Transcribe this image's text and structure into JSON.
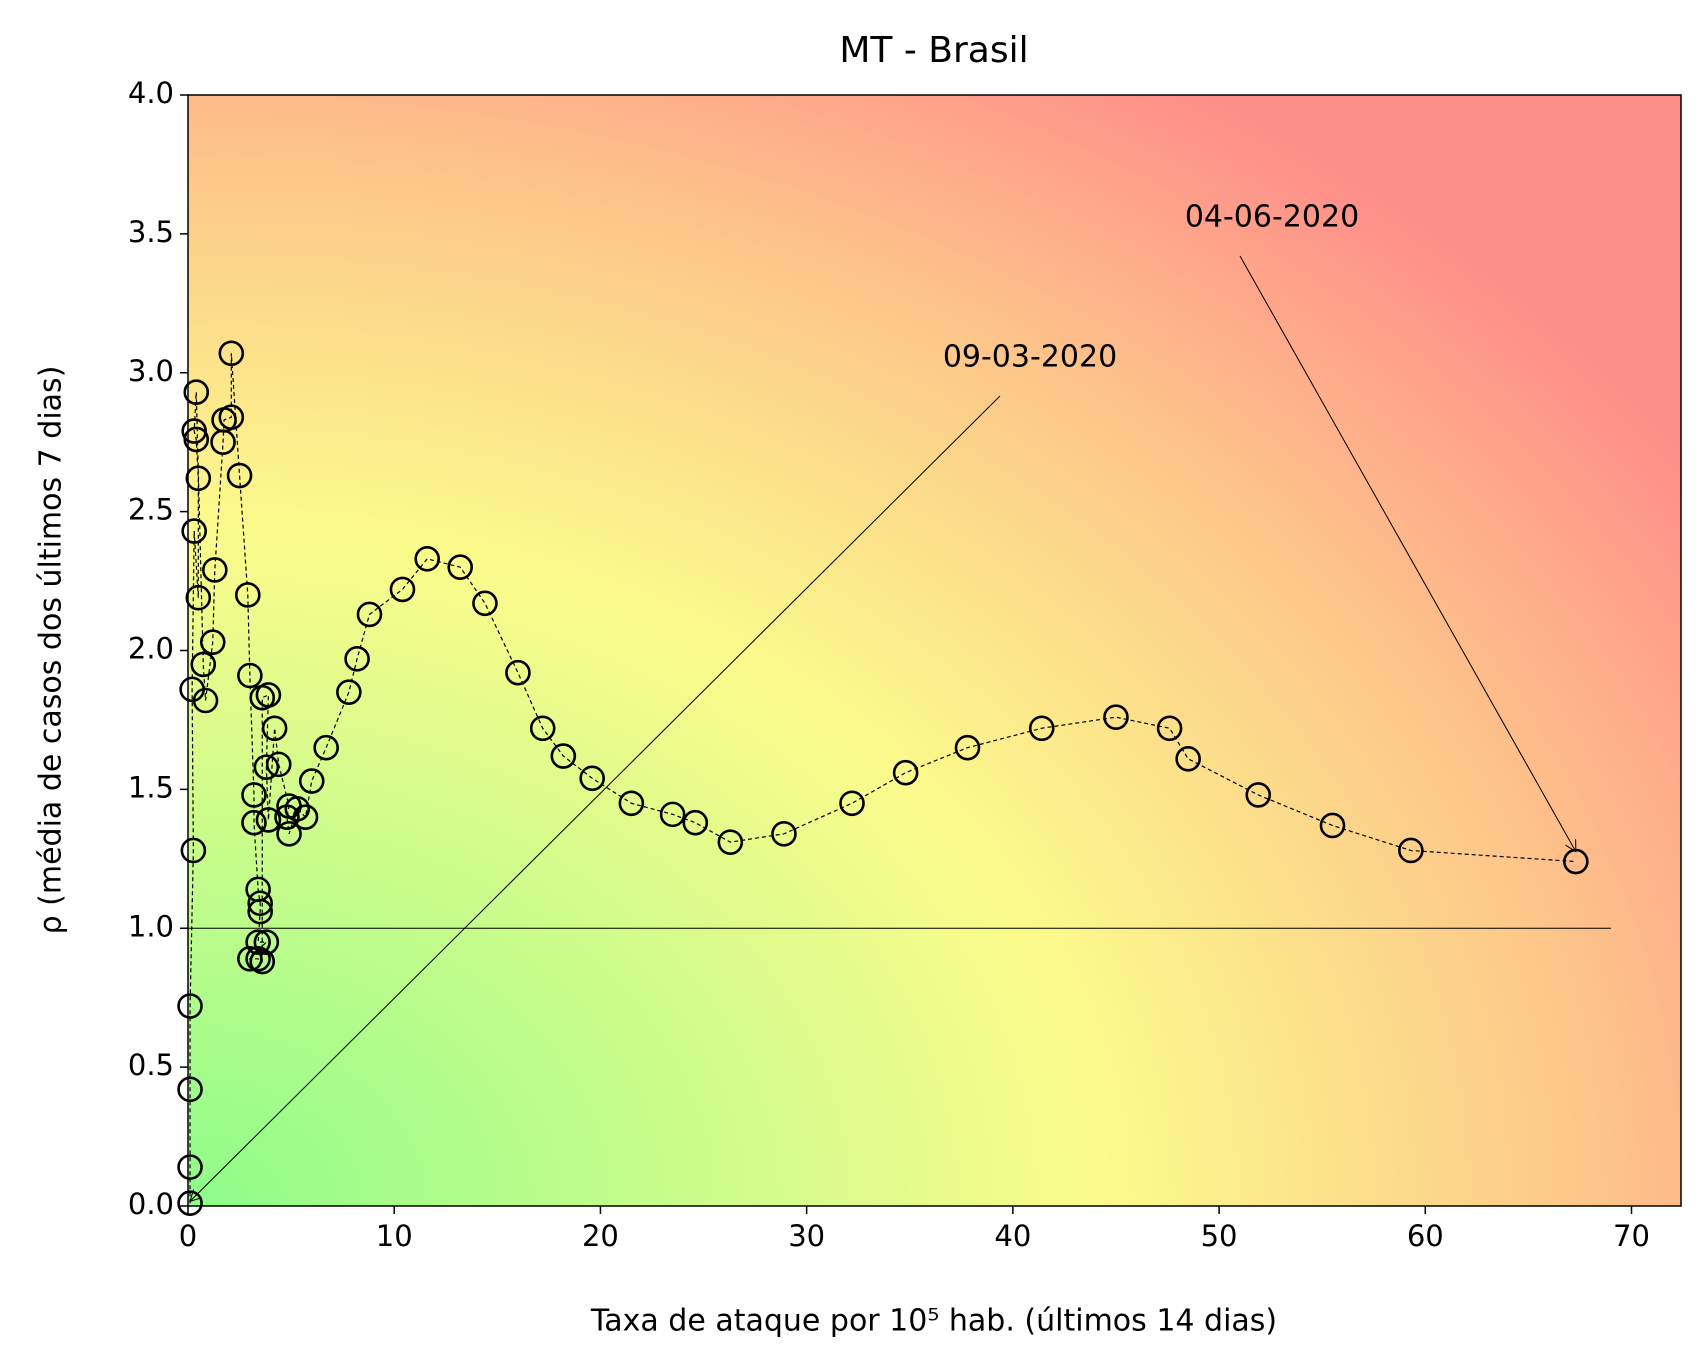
{
  "chart_data": {
    "type": "scatter",
    "title": "MT - Brasil",
    "x_label": "Taxa de ataque por 10⁵ hab. (últimos 14 dias)",
    "y_label": "ρ (média de casos dos últimos 7 dias)",
    "x": [
      0.1,
      0.1,
      0.1,
      0.1,
      0.26,
      0.2,
      0.3,
      0.5,
      0.5,
      0.4,
      0.3,
      0.4,
      0.74,
      0.85,
      1.2,
      1.3,
      1.7,
      1.75,
      2.1,
      2.1,
      2.5,
      2.9,
      3.0,
      3.2,
      3.2,
      3.4,
      3.5,
      3.5,
      3.4,
      3.8,
      3.0,
      3.4,
      3.6,
      3.6,
      3.9,
      3.8,
      3.9,
      4.2,
      4.4,
      4.9,
      4.8,
      4.9,
      5.3,
      5.7,
      6.0,
      6.7,
      7.8,
      8.2,
      8.8,
      10.4,
      11.6,
      13.2,
      14.4,
      16.0,
      17.2,
      18.2,
      19.6,
      21.5,
      23.5,
      24.6,
      26.3,
      28.9,
      32.2,
      34.8,
      37.8,
      41.4,
      45.0,
      47.6,
      48.5,
      51.9,
      55.5,
      59.3,
      67.3
    ],
    "series": [
      {
        "color": "#000000",
        "values": [
          0.01,
          0.14,
          0.42,
          0.72,
          1.28,
          1.86,
          2.43,
          2.19,
          2.62,
          2.76,
          2.79,
          2.93,
          1.95,
          1.82,
          2.03,
          2.29,
          2.75,
          2.83,
          2.84,
          3.07,
          2.63,
          2.2,
          1.91,
          1.48,
          1.38,
          1.14,
          1.09,
          1.06,
          0.95,
          0.95,
          0.89,
          0.89,
          0.88,
          1.83,
          1.84,
          1.58,
          1.39,
          1.72,
          1.59,
          1.44,
          1.4,
          1.34,
          1.43,
          1.4,
          1.53,
          1.65,
          1.85,
          1.97,
          2.13,
          2.22,
          2.33,
          2.3,
          2.17,
          1.92,
          1.72,
          1.62,
          1.54,
          1.45,
          1.41,
          1.38,
          1.31,
          1.34,
          1.45,
          1.56,
          1.65,
          1.72,
          1.76,
          1.72,
          1.61,
          1.48,
          1.37,
          1.28,
          1.24
        ]
      }
    ],
    "annotations": [
      {
        "text": "09-03-2020"
      },
      {
        "text": "04-06-2020"
      }
    ],
    "reference_line": {
      "y": 1.0,
      "x": [
        0,
        69
      ]
    },
    "xlim": [
      0,
      72.4
    ],
    "ylim": [
      0,
      4.0
    ],
    "xticks": [
      0,
      10,
      20,
      30,
      40,
      50,
      60,
      70
    ],
    "yticks": [
      {
        "value": 0,
        "label": "0.0"
      },
      {
        "value": 0.5,
        "label": "0.5"
      },
      {
        "value": 1,
        "label": "1.0"
      },
      {
        "value": 1.5,
        "label": "1.5"
      },
      {
        "value": 2,
        "label": "2.0"
      },
      {
        "value": 2.5,
        "label": "2.5"
      },
      {
        "value": 3,
        "label": "3.0"
      },
      {
        "value": 3.5,
        "label": "3.5"
      },
      {
        "value": 4,
        "label": "4.0"
      }
    ],
    "grid": false
  }
}
